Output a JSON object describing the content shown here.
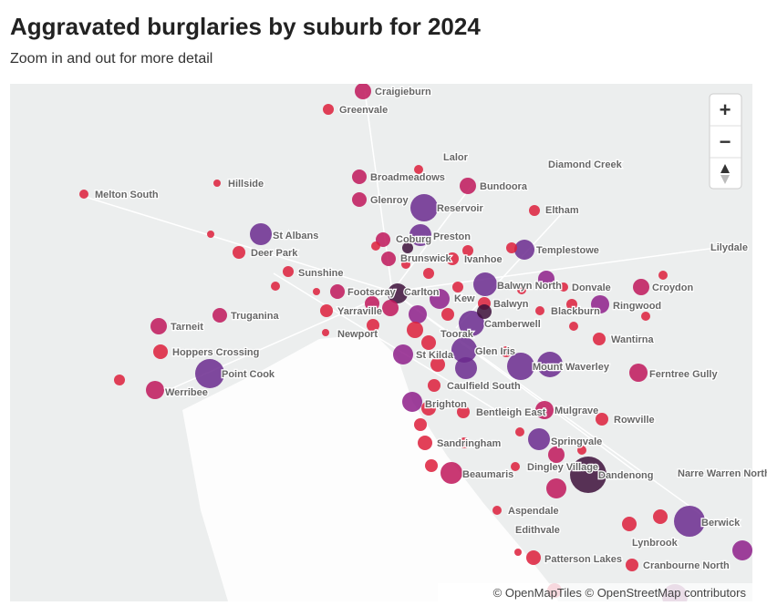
{
  "header": {
    "title": "Aggravated burglaries by suburb for 2024",
    "subtitle": "Zoom in and out for more detail"
  },
  "controls": {
    "zoom_in": "+",
    "zoom_out": "−"
  },
  "attribution": "© OpenMapTiles © OpenStreetMap contributors",
  "places": [
    "Craigieburn",
    "Greenvale",
    "Lalor",
    "Broadmeadows",
    "Bundoora",
    "Diamond Creek",
    "Melton South",
    "Hillside",
    "Glenroy",
    "Reservoir",
    "Eltham",
    "St Albans",
    "Coburg",
    "Preston",
    "Deer Park",
    "Brunswick",
    "Ivanhoe",
    "Templestowe",
    "Lilydale",
    "Sunshine",
    "Balwyn North",
    "Donvale",
    "Croydon",
    "Footscray",
    "Carlton",
    "Kew",
    "Balwyn",
    "Tarneit",
    "Truganina",
    "Yarraville",
    "Blackburn",
    "Ringwood",
    "Camberwell",
    "Newport",
    "Toorak",
    "Wantirna",
    "Hoppers Crossing",
    "St Kilda",
    "Glen Iris",
    "Mount Waverley",
    "Point Cook",
    "Ferntree Gully",
    "Werribee",
    "Caulfield South",
    "Brighton",
    "Mulgrave",
    "Bentleigh East",
    "Rowville",
    "Springvale",
    "Sandringham",
    "Dingley Village",
    "Beaumaris",
    "Dandenong",
    "Narre Warren North",
    "Aspendale",
    "Berwick",
    "Edithvale",
    "Lynbrook",
    "Patterson Lakes",
    "Cranbourne North"
  ]
}
